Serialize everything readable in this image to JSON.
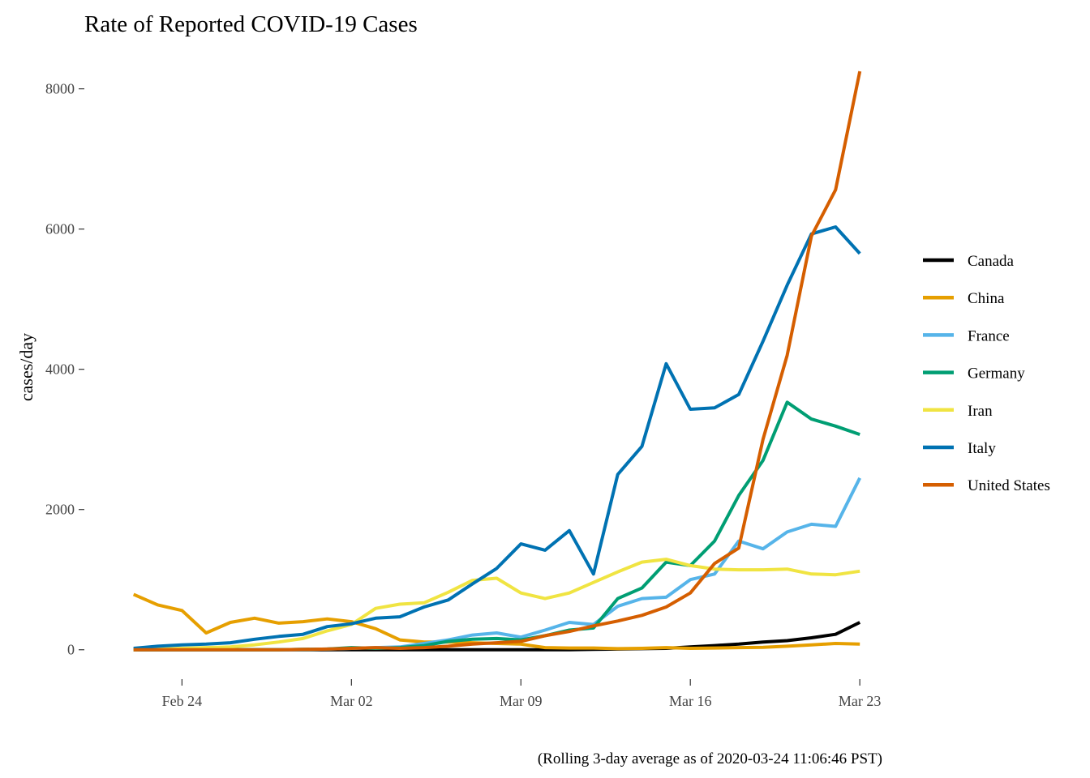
{
  "chart_data": {
    "type": "line",
    "title": "Rate of Reported COVID-19 Cases",
    "xlabel": "",
    "ylabel": "cases/day",
    "caption": "(Rolling 3-day average as of 2020-03-24 11:06:46 PST)",
    "x": [
      "2020-02-22",
      "2020-02-23",
      "2020-02-24",
      "2020-02-25",
      "2020-02-26",
      "2020-02-27",
      "2020-02-28",
      "2020-02-29",
      "2020-03-01",
      "2020-03-02",
      "2020-03-03",
      "2020-03-04",
      "2020-03-05",
      "2020-03-06",
      "2020-03-07",
      "2020-03-08",
      "2020-03-09",
      "2020-03-10",
      "2020-03-11",
      "2020-03-12",
      "2020-03-13",
      "2020-03-14",
      "2020-03-15",
      "2020-03-16",
      "2020-03-17",
      "2020-03-18",
      "2020-03-19",
      "2020-03-20",
      "2020-03-21",
      "2020-03-22",
      "2020-03-23"
    ],
    "xticks": [
      {
        "date": "2020-02-24",
        "label": "Feb 24"
      },
      {
        "date": "2020-03-02",
        "label": "Mar 02"
      },
      {
        "date": "2020-03-09",
        "label": "Mar 09"
      },
      {
        "date": "2020-03-16",
        "label": "Mar 16"
      },
      {
        "date": "2020-03-23",
        "label": "Mar 23"
      }
    ],
    "yticks": [
      0,
      2000,
      4000,
      6000,
      8000
    ],
    "xlim": [
      "2020-02-20",
      "2020-03-24"
    ],
    "ylim": [
      -500,
      8400
    ],
    "grid": false,
    "legend_position": "right",
    "series": [
      {
        "name": "Canada",
        "color": "#000000",
        "values": [
          0,
          0,
          0,
          0,
          0,
          0,
          0,
          0,
          0,
          0,
          0,
          0,
          0,
          0,
          0,
          0,
          0,
          0,
          0,
          5,
          10,
          15,
          20,
          40,
          60,
          80,
          110,
          130,
          170,
          220,
          390
        ]
      },
      {
        "name": "China",
        "color": "#E69F00",
        "values": [
          790,
          640,
          560,
          240,
          390,
          450,
          380,
          400,
          440,
          400,
          300,
          140,
          110,
          110,
          100,
          90,
          80,
          30,
          25,
          25,
          15,
          20,
          30,
          20,
          25,
          30,
          35,
          50,
          70,
          90,
          80
        ]
      },
      {
        "name": "France",
        "color": "#56B4E9",
        "values": [
          0,
          0,
          0,
          0,
          0,
          0,
          0,
          5,
          10,
          20,
          30,
          40,
          90,
          140,
          210,
          240,
          180,
          280,
          390,
          360,
          620,
          730,
          750,
          1000,
          1080,
          1550,
          1440,
          1680,
          1790,
          1760,
          2450
        ]
      },
      {
        "name": "Germany",
        "color": "#009E73",
        "values": [
          0,
          0,
          0,
          0,
          0,
          0,
          0,
          5,
          10,
          30,
          20,
          30,
          60,
          120,
          150,
          160,
          140,
          200,
          280,
          310,
          730,
          880,
          1250,
          1200,
          1550,
          2200,
          2700,
          3530,
          3290,
          3190,
          3070
        ]
      },
      {
        "name": "Iran",
        "color": "#F0E442",
        "values": [
          0,
          10,
          20,
          30,
          40,
          70,
          110,
          160,
          270,
          360,
          590,
          650,
          670,
          820,
          990,
          1020,
          810,
          730,
          810,
          960,
          1110,
          1250,
          1290,
          1200,
          1150,
          1140,
          1140,
          1150,
          1080,
          1070,
          1120
        ]
      },
      {
        "name": "Italy",
        "color": "#0072B2",
        "values": [
          20,
          50,
          70,
          80,
          100,
          150,
          190,
          220,
          330,
          370,
          450,
          470,
          610,
          710,
          940,
          1160,
          1510,
          1420,
          1700,
          1080,
          2500,
          2900,
          4080,
          3430,
          3450,
          3640,
          4400,
          5200,
          5930,
          6030,
          5650
        ]
      },
      {
        "name": "United States",
        "color": "#D55E00",
        "values": [
          0,
          0,
          0,
          0,
          0,
          0,
          0,
          5,
          10,
          20,
          30,
          20,
          30,
          50,
          80,
          100,
          120,
          200,
          260,
          340,
          410,
          490,
          610,
          810,
          1230,
          1450,
          3000,
          4200,
          5900,
          6560,
          8250
        ]
      }
    ]
  }
}
